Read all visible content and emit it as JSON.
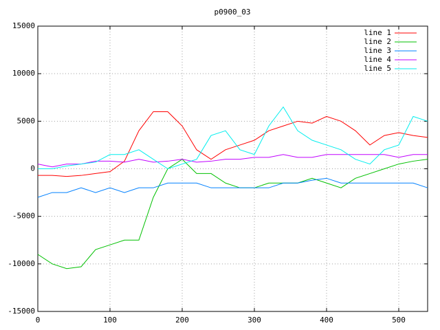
{
  "chart_data": {
    "type": "line",
    "title": "p0900_03",
    "x": [
      0,
      20,
      40,
      60,
      80,
      100,
      120,
      140,
      160,
      180,
      200,
      220,
      240,
      260,
      280,
      300,
      320,
      340,
      360,
      380,
      400,
      420,
      440,
      460,
      480,
      500,
      520,
      540
    ],
    "series": [
      {
        "name": "line 1",
        "color": "#ff0000",
        "values": [
          -700,
          -700,
          -800,
          -700,
          -500,
          -300,
          800,
          4000,
          6000,
          6000,
          4500,
          2000,
          1000,
          2000,
          2500,
          3000,
          4000,
          4500,
          5000,
          4800,
          5500,
          5000,
          4000,
          2500,
          3500,
          3800,
          3500,
          3300
        ]
      },
      {
        "name": "line 2",
        "color": "#00c000",
        "values": [
          -9000,
          -10000,
          -10500,
          -10300,
          -8500,
          -8000,
          -7500,
          -7500,
          -3000,
          0,
          1000,
          -500,
          -500,
          -1500,
          -2000,
          -2000,
          -1500,
          -1500,
          -1500,
          -1000,
          -1500,
          -2000,
          -1000,
          -500,
          0,
          500,
          800,
          1000
        ]
      },
      {
        "name": "line 3",
        "color": "#0080ff",
        "values": [
          -3000,
          -2500,
          -2500,
          -2000,
          -2500,
          -2000,
          -2500,
          -2000,
          -2000,
          -1500,
          -1500,
          -1500,
          -2000,
          -2000,
          -2000,
          -2000,
          -2000,
          -1500,
          -1500,
          -1200,
          -1000,
          -1500,
          -1500,
          -1500,
          -1500,
          -1500,
          -1500,
          -2000
        ]
      },
      {
        "name": "line 4",
        "color": "#c000ff",
        "values": [
          500,
          200,
          500,
          500,
          800,
          800,
          700,
          1000,
          700,
          800,
          1000,
          700,
          800,
          1000,
          1000,
          1200,
          1200,
          1500,
          1200,
          1200,
          1500,
          1500,
          1500,
          1500,
          1500,
          1200,
          1500,
          1500
        ]
      },
      {
        "name": "line 5",
        "color": "#00eeee",
        "values": [
          0,
          0,
          300,
          500,
          700,
          1500,
          1500,
          2000,
          1000,
          0,
          500,
          1000,
          3500,
          4000,
          2000,
          1500,
          4500,
          6500,
          4000,
          3000,
          2500,
          2000,
          1000,
          500,
          2000,
          2500,
          5500,
          5000
        ]
      }
    ],
    "xlim": [
      0,
      540
    ],
    "xticks": [
      0,
      100,
      200,
      300,
      400,
      500
    ],
    "ylim": [
      -15000,
      15000
    ],
    "yticks": [
      -15000,
      -10000,
      -5000,
      0,
      5000,
      10000,
      15000
    ],
    "grid": true,
    "legend": "top-right"
  }
}
